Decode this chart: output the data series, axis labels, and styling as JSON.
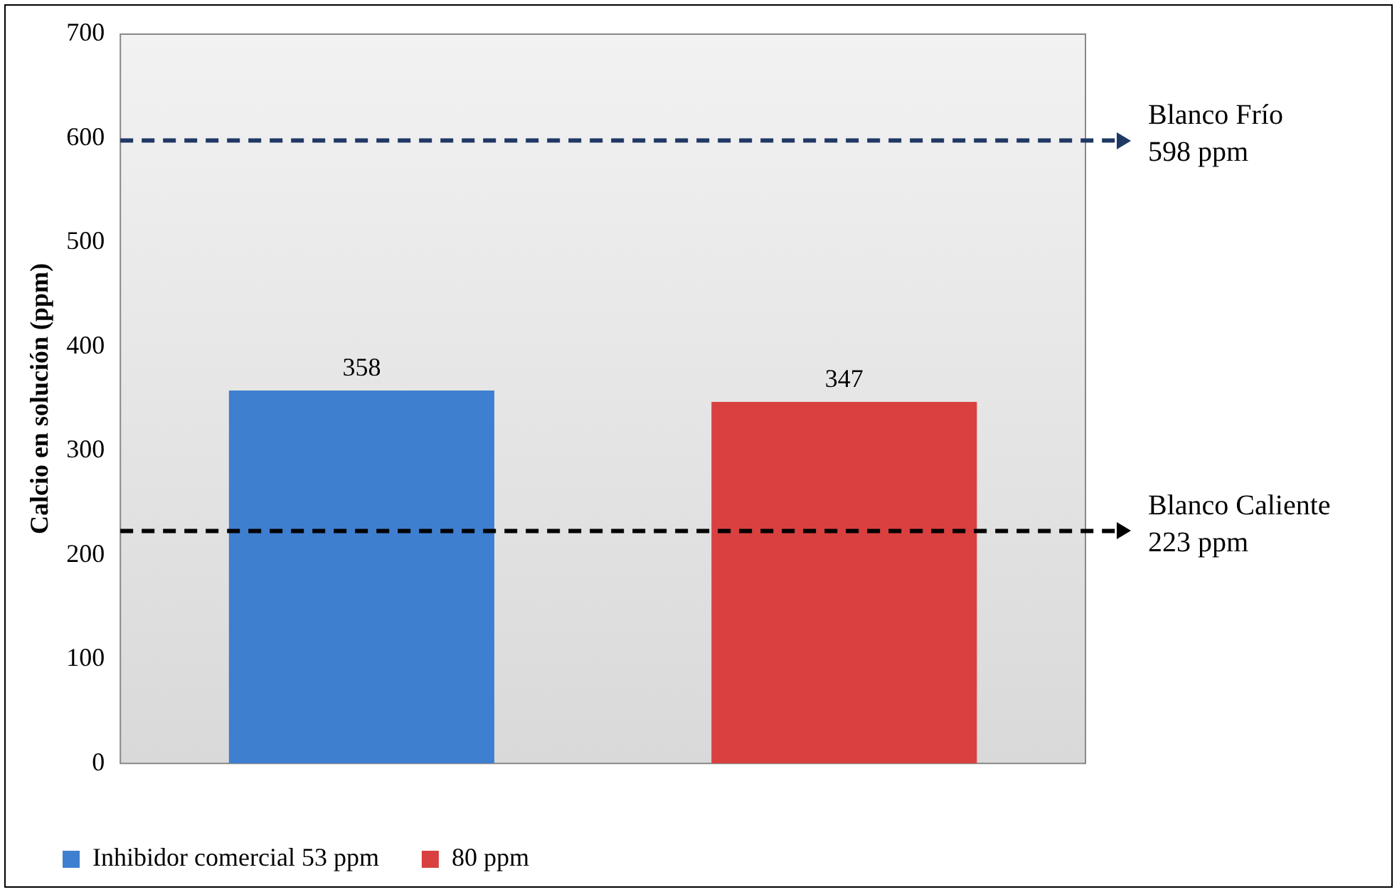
{
  "chart_data": {
    "type": "bar",
    "ylabel": "Calcio en solución (ppm)",
    "categories": [
      null,
      null
    ],
    "series": [
      {
        "name": "Inhibidor comercial 53 ppm",
        "color": "#3f7fd0",
        "values": [
          358,
          null
        ]
      },
      {
        "name": "80 ppm",
        "color": "#d94040",
        "values": [
          null,
          347
        ]
      }
    ],
    "ylim": [
      0,
      700
    ],
    "yticks": [
      0,
      100,
      200,
      300,
      400,
      500,
      600,
      700
    ],
    "grid": false,
    "legend": "bottom",
    "data_labels": true,
    "ref_lines": [
      {
        "axis": "y",
        "value": 598,
        "label": "Blanco Frío\n598 ppm",
        "color": "#1f3864",
        "line_style": "dashed"
      },
      {
        "axis": "y",
        "value": 223,
        "label": "Blanco Caliente\n223 ppm",
        "color": "#000000",
        "line_style": "dashed"
      }
    ]
  }
}
